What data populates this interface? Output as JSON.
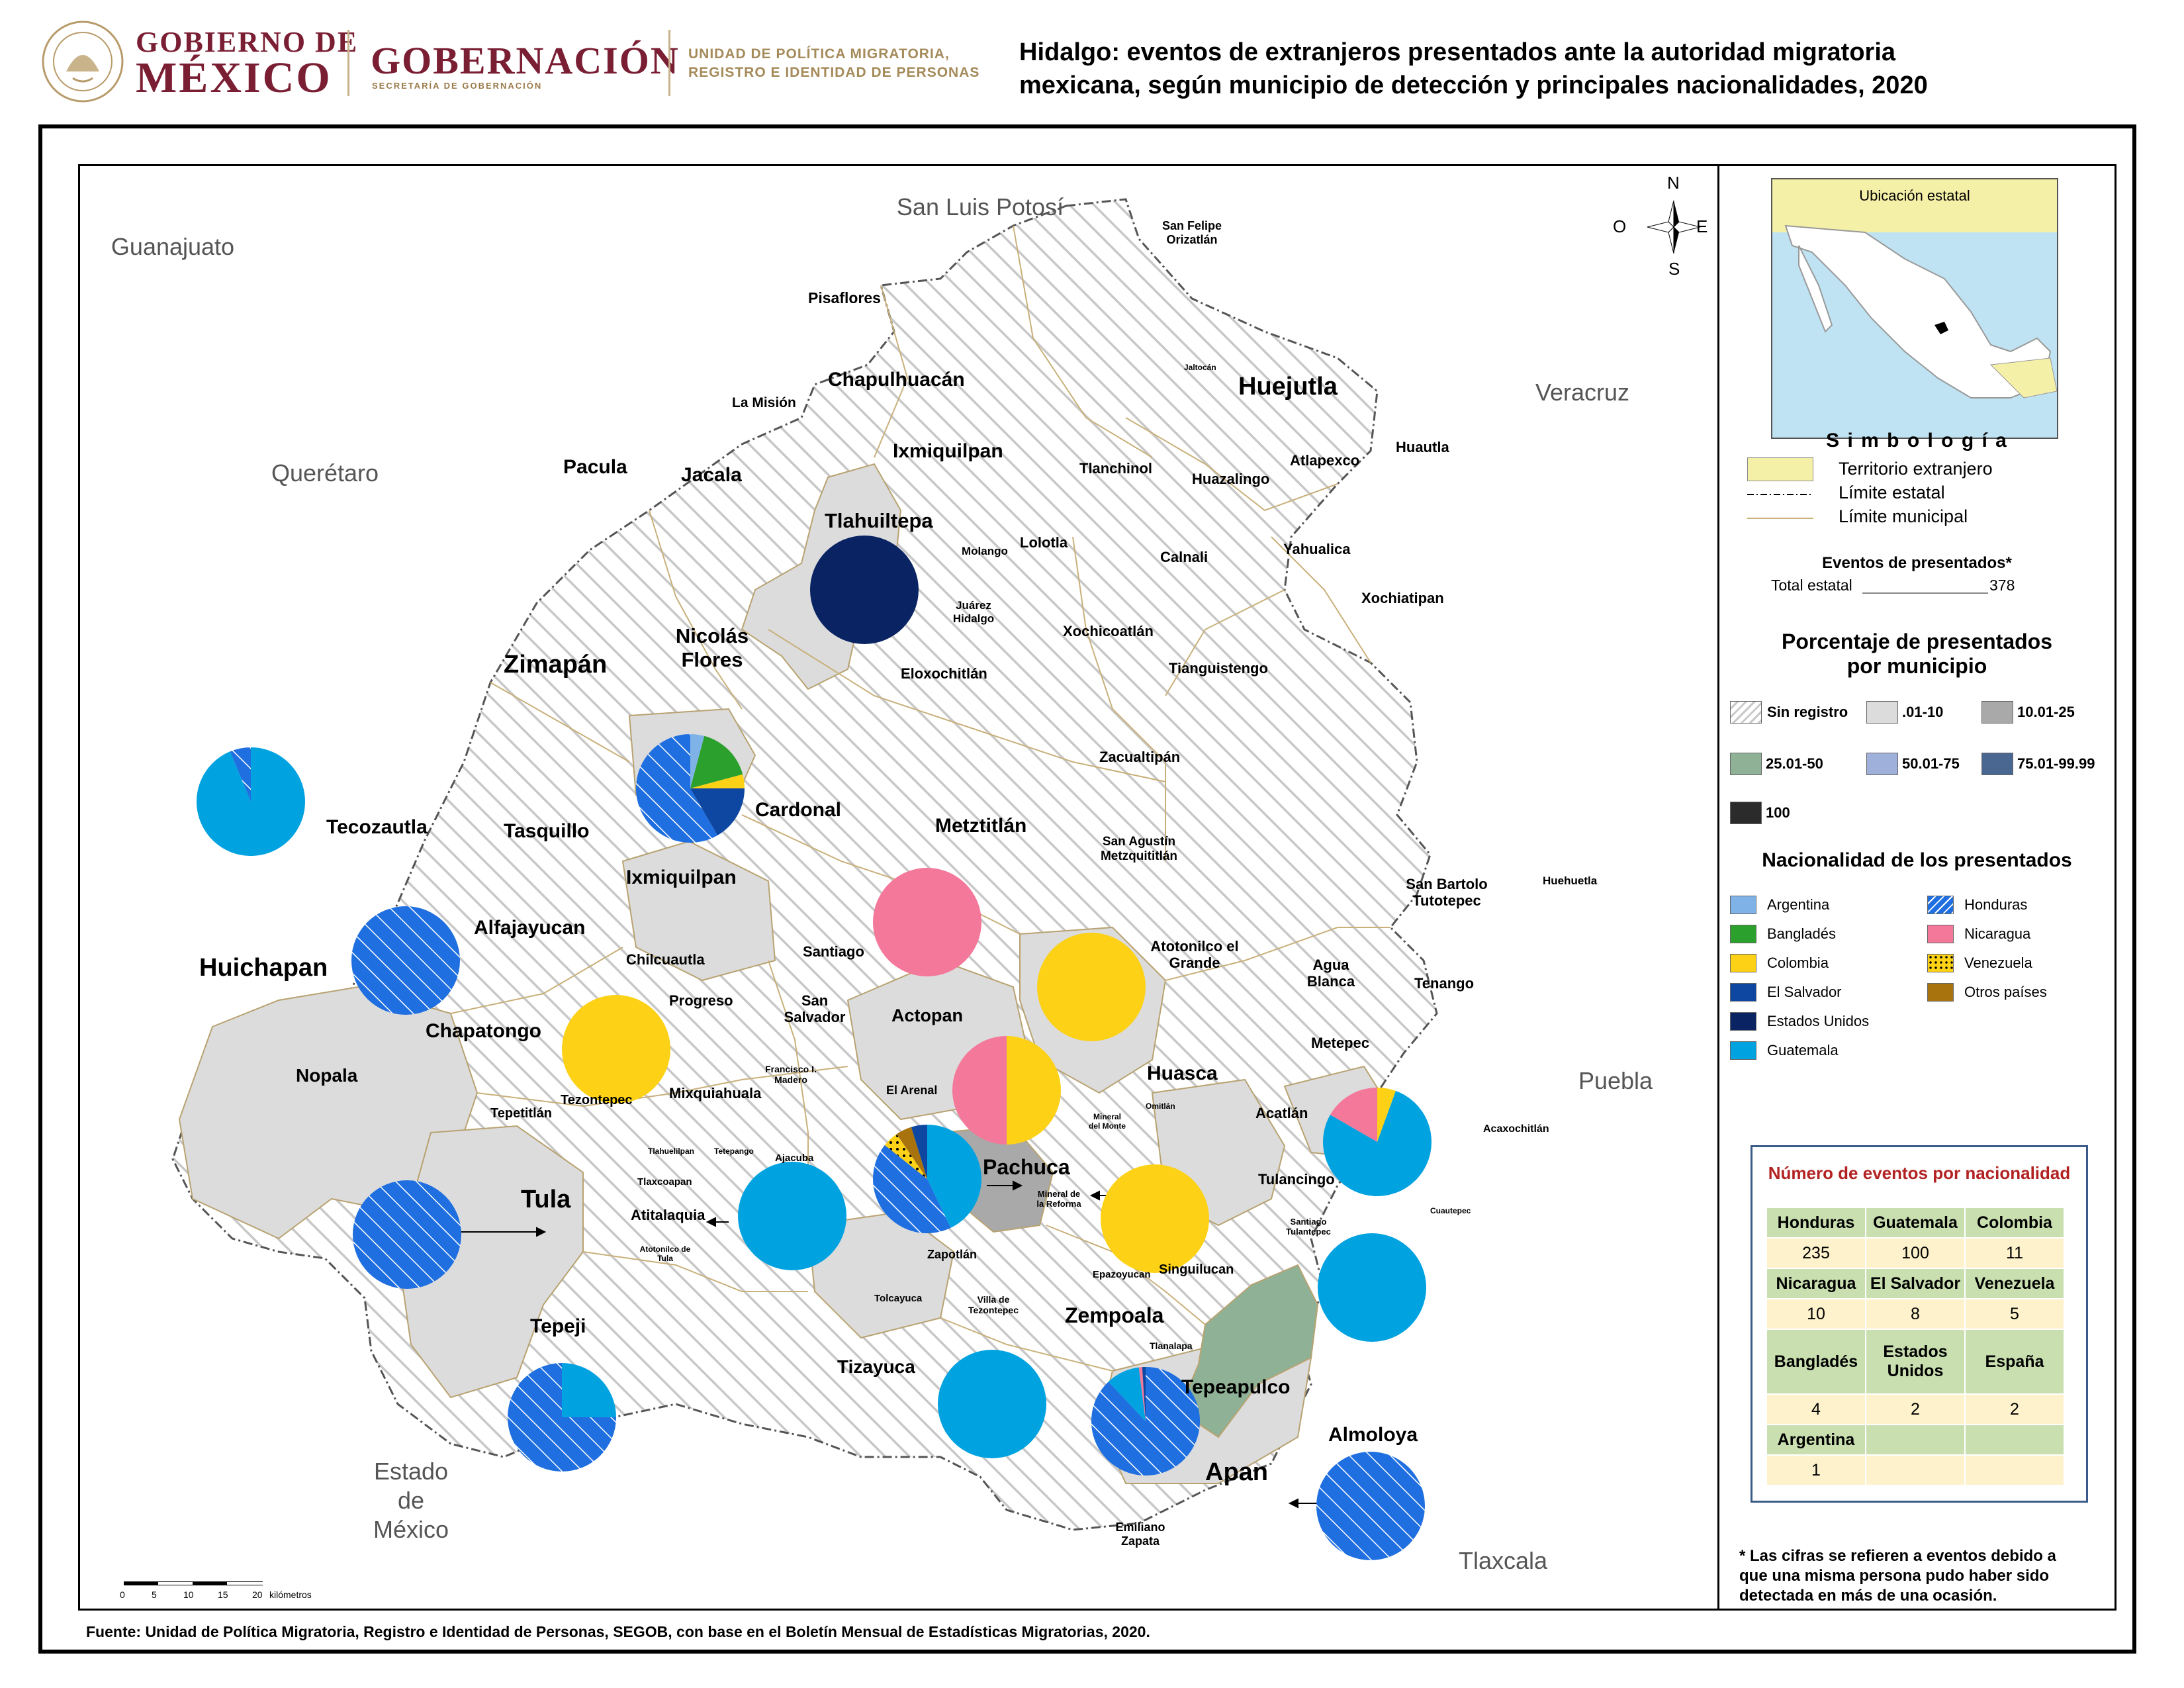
{
  "header": {
    "gob_line1": "GOBIERNO DE",
    "gob_line2": "MÉXICO",
    "gobernacion": "GOBERNACIÓN",
    "gobernacion_sub": "SECRETARÍA DE GOBERNACIÓN",
    "upm_line1": "UNIDAD DE POLÍTICA MIGRATORIA,",
    "upm_line2": "REGISTRO E IDENTIDAD DE PERSONAS",
    "title_line1": "Hidalgo: eventos de extranjeros presentados ante la autoridad migratoria",
    "title_line2": "mexicana, según municipio de detección y principales nacionalidades, 2020"
  },
  "map": {
    "states": {
      "guanajuato": "Guanajuato",
      "san_luis_potosi": "San Luis Potosí",
      "queretaro": "Querétaro",
      "veracruz": "Veracruz",
      "puebla": "Puebla",
      "edomex_1": "Estado",
      "edomex_2": "de",
      "edomex_3": "México",
      "tlaxcala": "Tlaxcala"
    },
    "compass": {
      "n": "N",
      "s": "S",
      "e": "E",
      "o": "O"
    },
    "municipalities": {
      "san_felipe": "San Felipe Orizatlán",
      "pisaflores": "Pisaflores",
      "chapulhuacan": "Chapulhuacán",
      "la_mision": "La Misión",
      "jaltocan": "Jaltocán",
      "huejutla": "Huejutla",
      "pacula": "Pacula",
      "jacala": "Jacala",
      "ixmiquilpan_n": "Ixmiquilpan",
      "tlanchinol": "Tlanchinol",
      "huazalingo": "Huazalingo",
      "atlapexco": "Atlapexco",
      "huautla": "Huautla",
      "tlahuiltepa": "Tlahuiltepa",
      "molango": "Molango",
      "lolotla": "Lolotla",
      "calnali": "Calnali",
      "yahualica": "Yahualica",
      "xochiatipan": "Xochiatipan",
      "juarez": "Juárez Hidalgo",
      "nicolas": "Nicolás Flores",
      "zimapan": "Zimapán",
      "xochicoatlan": "Xochicoatlán",
      "eloxochitlan": "Eloxochitlán",
      "tianguistengo": "Tianguistengo",
      "zacualtipan": "Zacualtipán",
      "tecozautla": "Tecozautla",
      "tasquillo": "Tasquillo",
      "cardonal": "Cardonal",
      "metztitlan": "Metztitlán",
      "san_agustin": "San Agustín Metzquititlán",
      "san_bartolo": "San Bartolo Tutotepec",
      "huehuetla": "Huehuetla",
      "ixmiquilpan": "Ixmiquilpan",
      "alfajayucan": "Alfajayucan",
      "huichapan": "Huichapan",
      "chilcuautla": "Chilcuautla",
      "santiago": "Santiago",
      "atotonilco_g": "Atotonilco el Grande",
      "agua_blanca": "Agua Blanca",
      "tenango": "Tenango",
      "progreso": "Progreso",
      "san_salvador": "San Salvador",
      "actopan": "Actopan",
      "chapatongo": "Chapatongo",
      "metepec": "Metepec",
      "nopala": "Nopala",
      "francisco": "Francisco I. Madero",
      "huasca": "Huasca",
      "tezontepec": "Tezontepec",
      "mixquiahuala": "Mixquiahuala",
      "el_arenal": "El Arenal",
      "tepetitlan": "Tepetitlán",
      "omitlan": "Omitlán",
      "mineral_monte": "Mineral del Monte",
      "acatlan": "Acatlán",
      "acaxochitlan": "Acaxochitlán",
      "tlahuelilpan": "Tlahuelilpan",
      "tetepango": "Tetepango",
      "ajacuba": "Ajacuba",
      "pachuca": "Pachuca",
      "tlaxcoapan": "Tlaxcoapan",
      "tula": "Tula",
      "atitalaquia": "Atitalaquia",
      "mineral_reforma": "Mineral de la Reforma",
      "tulancingo": "Tulancingo",
      "cuautepec": "Cuautepec",
      "santiago_t": "Santiago Tulantepec",
      "atotonilco_t": "Atotonilco de Tula",
      "zapotlan": "Zapotlán",
      "singuilucan": "Singuilucan",
      "epazoyucan": "Epazoyucan",
      "tolcayuca": "Tolcayuca",
      "villa_tez": "Villa de Tezontepec",
      "zempoala": "Zempoala",
      "tepeji": "Tepeji",
      "tizayuca": "Tizayuca",
      "tlanalapa": "Tlanalapa",
      "tepeapulco": "Tepeapulco",
      "almoloya": "Almoloya",
      "apan": "Apan",
      "emiliano": "Emiliano Zapata"
    },
    "scale": {
      "unit": "kilómetros",
      "ticks": [
        "0",
        "5",
        "10",
        "15",
        "20"
      ]
    },
    "pies": [
      {
        "name": "Tlahuiltepa",
        "slices": [
          {
            "nat": "Estados Unidos",
            "value": 2
          }
        ]
      },
      {
        "name": "Cardonal",
        "slices": [
          {
            "nat": "Argentina",
            "value": 1
          },
          {
            "nat": "Bangladés",
            "value": 4
          },
          {
            "nat": "Colombia",
            "value": 1
          },
          {
            "nat": "El Salvador",
            "value": 4
          },
          {
            "nat": "Honduras",
            "value": 14
          }
        ]
      },
      {
        "name": "Tecozautla",
        "slices": [
          {
            "nat": "Guatemala",
            "value": 30
          },
          {
            "nat": "Honduras",
            "value": 2
          }
        ]
      },
      {
        "name": "Huichapan",
        "slices": [
          {
            "nat": "Honduras",
            "value": 1
          }
        ]
      },
      {
        "name": "Santiago de Anaya",
        "slices": [
          {
            "nat": "Nicaragua",
            "value": 1
          }
        ]
      },
      {
        "name": "Atotonilco el Grande",
        "slices": [
          {
            "nat": "Colombia",
            "value": 1
          }
        ]
      },
      {
        "name": "Chapatongo",
        "slices": [
          {
            "nat": "Colombia",
            "value": 1
          }
        ]
      },
      {
        "name": "Actopan",
        "slices": [
          {
            "nat": "Colombia",
            "value": 1
          },
          {
            "nat": "Nicaragua",
            "value": 1
          }
        ]
      },
      {
        "name": "Acaxochitlán",
        "slices": [
          {
            "nat": "Colombia",
            "value": 1
          },
          {
            "nat": "Guatemala",
            "value": 14
          },
          {
            "nat": "Nicaragua",
            "value": 3
          }
        ]
      },
      {
        "name": "Pachuca",
        "slices": [
          {
            "nat": "Guatemala",
            "value": 9
          },
          {
            "nat": "Honduras",
            "value": 9
          },
          {
            "nat": "Venezuela",
            "value": 1
          },
          {
            "nat": "Otros países",
            "value": 1
          },
          {
            "nat": "El Salvador",
            "value": 1
          }
        ]
      },
      {
        "name": "Ajacuba",
        "slices": [
          {
            "nat": "Guatemala",
            "value": 1
          }
        ]
      },
      {
        "name": "Tula",
        "slices": [
          {
            "nat": "Honduras",
            "value": 1
          }
        ]
      },
      {
        "name": "Mineral de la Reforma",
        "slices": [
          {
            "nat": "Colombia",
            "value": 1
          }
        ]
      },
      {
        "name": "Cuautepec",
        "slices": [
          {
            "nat": "Guatemala",
            "value": 1
          }
        ]
      },
      {
        "name": "Tepeji",
        "slices": [
          {
            "nat": "Guatemala",
            "value": 25
          },
          {
            "nat": "Honduras",
            "value": 75
          }
        ]
      },
      {
        "name": "Tizayuca",
        "slices": [
          {
            "nat": "Guatemala",
            "value": 1
          }
        ]
      },
      {
        "name": "Tepeapulco",
        "slices": [
          {
            "nat": "Honduras",
            "value": 88
          },
          {
            "nat": "Guatemala",
            "value": 10
          },
          {
            "nat": "Nicaragua",
            "value": 1
          },
          {
            "nat": "El Salvador",
            "value": 1
          }
        ]
      },
      {
        "name": "Apan",
        "slices": [
          {
            "nat": "Honduras",
            "value": 1
          }
        ]
      }
    ]
  },
  "legend": {
    "location_title": "Ubicación estatal",
    "simbologia": "S i m b o l o g í a",
    "territorio": "Territorio extranjero",
    "limite_estatal": "Límite estatal",
    "limite_municipal": "Límite municipal",
    "eventos_title": "Eventos de presentados*",
    "total_label": "Total estatal",
    "total_value": "378",
    "pct_title_1": "Porcentaje de presentados",
    "pct_title_2": "por municipio",
    "pct_classes": [
      "Sin registro",
      ".01-10",
      "10.01-25",
      "25.01-50",
      "50.01-75",
      "75.01-99.99",
      "100"
    ],
    "nat_title": "Nacionalidad de los presentados",
    "nationalities_left": [
      "Argentina",
      "Bangladés",
      "Colombia",
      "El Salvador",
      "Estados Unidos",
      "Guatemala"
    ],
    "nationalities_right": [
      "Honduras",
      "Nicaragua",
      "Venezuela",
      "Otros países"
    ],
    "colors": {
      "Argentina": "#7fb3e8",
      "Bangladés": "#2ca02c",
      "Colombia": "#fcd116",
      "El Salvador": "#0d47a1",
      "Estados Unidos": "#0a2463",
      "Guatemala": "#00a2e0",
      "Honduras": "#1f6fe0",
      "Nicaragua": "#f4789a",
      "Venezuela": "#fcd116",
      "Otros países": "#a8720d",
      "territorio": "#f5f0a8",
      "pct_01_10": "#dcdcdc",
      "pct_10_25": "#a9a9a9",
      "pct_25_50": "#8fb196",
      "pct_50_75": "#9fb0da",
      "pct_75_99": "#4a6791",
      "pct_100": "#2b2b2b"
    }
  },
  "table": {
    "title": "Número de eventos por nacionalidad",
    "rows": [
      [
        {
          "h": "Honduras"
        },
        {
          "h": "Guatemala"
        },
        {
          "h": "Colombia"
        }
      ],
      [
        {
          "v": "235"
        },
        {
          "v": "100"
        },
        {
          "v": "11"
        }
      ],
      [
        {
          "h": "Nicaragua"
        },
        {
          "h": "El Salvador"
        },
        {
          "h": "Venezuela"
        }
      ],
      [
        {
          "v": "10"
        },
        {
          "v": "8"
        },
        {
          "v": "5"
        }
      ],
      [
        {
          "h": "Bangladés"
        },
        {
          "h": "Estados Unidos"
        },
        {
          "h": "España"
        }
      ],
      [
        {
          "v": "4"
        },
        {
          "v": "2"
        },
        {
          "v": "2"
        }
      ],
      [
        {
          "h": "Argentina"
        },
        {
          "h": ""
        },
        {
          "h": ""
        }
      ],
      [
        {
          "v": "1"
        },
        {
          "v": ""
        },
        {
          "v": ""
        }
      ]
    ]
  },
  "footnote": "* Las cifras se refieren a eventos debido a que una misma persona pudo haber sido detectada en más de una ocasión.",
  "source": "Fuente: Unidad de Política Migratoria, Registro e Identidad de Personas, SEGOB, con base en el Boletín Mensual de Estadísticas Migratorias, 2020."
}
